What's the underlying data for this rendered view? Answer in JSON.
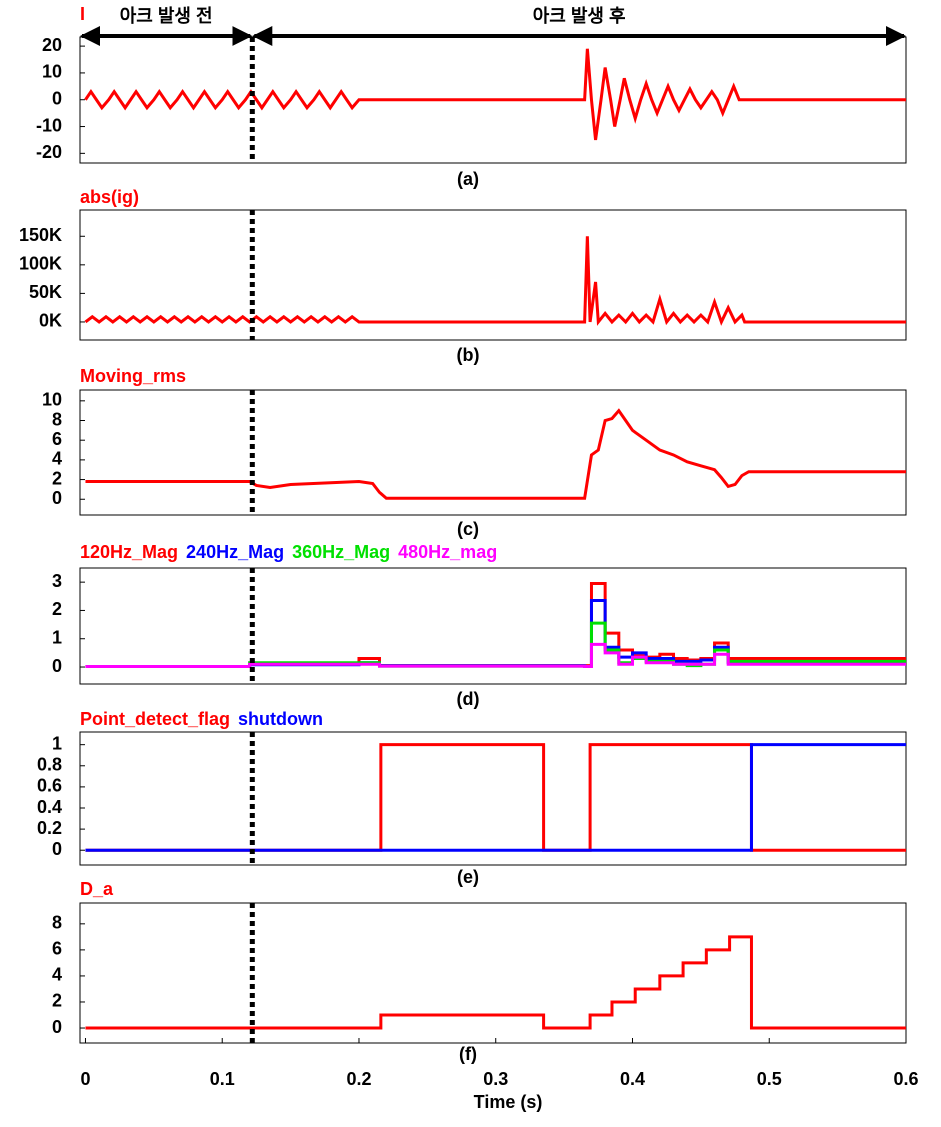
{
  "chart_data": [
    {
      "type": "line",
      "caption": "(a)",
      "xlim": [
        -0.004,
        0.6
      ],
      "ylim": [
        -23.6,
        23.4
      ],
      "yticks": [
        20,
        10,
        0,
        -10,
        -20
      ],
      "annotations": [
        {
          "text": "아크 발생 전",
          "x": [
            -0.004,
            0.122
          ]
        },
        {
          "text": "아크 발생 후",
          "x": [
            0.122,
            0.6
          ]
        }
      ],
      "series": [
        {
          "name": "I",
          "color": "#ff0000",
          "x": [
            0,
            0.004,
            0.008,
            0.012,
            0.017,
            0.021,
            0.025,
            0.029,
            0.033,
            0.037,
            0.041,
            0.045,
            0.05,
            0.054,
            0.058,
            0.062,
            0.067,
            0.071,
            0.075,
            0.079,
            0.083,
            0.087,
            0.091,
            0.095,
            0.1,
            0.104,
            0.108,
            0.112,
            0.117,
            0.121,
            0.125,
            0.129,
            0.133,
            0.137,
            0.141,
            0.145,
            0.15,
            0.154,
            0.158,
            0.162,
            0.167,
            0.171,
            0.175,
            0.179,
            0.183,
            0.187,
            0.191,
            0.195,
            0.2,
            0.365,
            0.367,
            0.37,
            0.373,
            0.377,
            0.38,
            0.384,
            0.387,
            0.391,
            0.394,
            0.398,
            0.402,
            0.406,
            0.41,
            0.414,
            0.418,
            0.422,
            0.426,
            0.43,
            0.434,
            0.438,
            0.442,
            0.446,
            0.45,
            0.454,
            0.458,
            0.462,
            0.466,
            0.47,
            0.474,
            0.478,
            0.6
          ],
          "values": [
            0,
            3,
            0,
            -3,
            0,
            3,
            0,
            -3,
            0,
            3,
            0,
            -3,
            0,
            3,
            0,
            -3,
            0,
            3,
            0,
            -3,
            0,
            3,
            0,
            -3,
            0,
            3,
            0,
            -3,
            0,
            3,
            0,
            -3,
            0,
            3,
            0,
            -3,
            0,
            3,
            0,
            -3,
            0,
            3,
            0,
            -3,
            0,
            3,
            0,
            -3,
            0,
            0,
            19,
            0,
            -15,
            0,
            12,
            0,
            -10,
            0,
            8,
            0,
            -7,
            0,
            6,
            0,
            -5,
            0,
            5,
            0,
            -4,
            0,
            4,
            0,
            -3,
            0,
            3,
            0,
            -5,
            0,
            5,
            0,
            0
          ]
        }
      ]
    },
    {
      "type": "line",
      "caption": "(b)",
      "xlim": [
        -0.004,
        0.6
      ],
      "ylim": [
        -31600,
        196000
      ],
      "yticks": [
        {
          "value": 150000,
          "label": "150K"
        },
        {
          "value": 100000,
          "label": "100K"
        },
        {
          "value": 50000,
          "label": "50K"
        },
        {
          "value": 0,
          "label": "0K"
        }
      ],
      "series": [
        {
          "name": "abs(ig)",
          "color": "#ff0000",
          "x": [
            0,
            0.005,
            0.01,
            0.015,
            0.02,
            0.025,
            0.03,
            0.035,
            0.04,
            0.045,
            0.05,
            0.055,
            0.06,
            0.065,
            0.07,
            0.075,
            0.08,
            0.085,
            0.09,
            0.095,
            0.1,
            0.105,
            0.11,
            0.115,
            0.12,
            0.125,
            0.13,
            0.135,
            0.14,
            0.145,
            0.15,
            0.155,
            0.16,
            0.165,
            0.17,
            0.175,
            0.18,
            0.185,
            0.19,
            0.195,
            0.2,
            0.365,
            0.367,
            0.369,
            0.373,
            0.375,
            0.38,
            0.385,
            0.39,
            0.395,
            0.4,
            0.405,
            0.41,
            0.415,
            0.42,
            0.425,
            0.43,
            0.435,
            0.44,
            0.445,
            0.45,
            0.455,
            0.46,
            0.465,
            0.47,
            0.475,
            0.48,
            0.482,
            0.6
          ],
          "values": [
            0,
            9000,
            0,
            9000,
            0,
            9000,
            0,
            9000,
            0,
            9000,
            0,
            9000,
            0,
            9000,
            0,
            9000,
            0,
            9000,
            0,
            9000,
            0,
            9000,
            0,
            9000,
            0,
            9000,
            0,
            9000,
            0,
            9000,
            0,
            9000,
            0,
            9000,
            0,
            9000,
            0,
            9000,
            0,
            9000,
            0,
            0,
            150000,
            0,
            70000,
            0,
            15000,
            0,
            12000,
            0,
            15000,
            0,
            12000,
            0,
            40000,
            0,
            15000,
            0,
            12000,
            0,
            12000,
            0,
            35000,
            0,
            25000,
            0,
            12000,
            0,
            0
          ]
        }
      ]
    },
    {
      "type": "line",
      "caption": "(c)",
      "xlim": [
        -0.004,
        0.6
      ],
      "ylim": [
        -1.6,
        11.1
      ],
      "yticks": [
        10,
        8,
        6,
        4,
        2,
        0
      ],
      "series": [
        {
          "name": "Moving_rms",
          "color": "#ff0000",
          "x": [
            0,
            0.12,
            0.125,
            0.135,
            0.15,
            0.2,
            0.21,
            0.215,
            0.22,
            0.365,
            0.37,
            0.375,
            0.38,
            0.385,
            0.39,
            0.395,
            0.4,
            0.41,
            0.42,
            0.43,
            0.44,
            0.45,
            0.46,
            0.465,
            0.47,
            0.475,
            0.48,
            0.485,
            0.6
          ],
          "values": [
            1.8,
            1.8,
            1.4,
            1.2,
            1.5,
            1.8,
            1.6,
            0.7,
            0.1,
            0.1,
            4.5,
            5,
            8,
            8.2,
            9,
            8,
            7,
            6,
            5,
            4.5,
            3.8,
            3.4,
            3,
            2.2,
            1.3,
            1.5,
            2.4,
            2.8,
            2.8
          ]
        }
      ]
    },
    {
      "type": "step",
      "caption": "(d)",
      "xlim": [
        -0.004,
        0.6
      ],
      "ylim": [
        -0.6,
        3.5
      ],
      "yticks": [
        3,
        2,
        1,
        0
      ],
      "series": [
        {
          "name": "120Hz_Mag",
          "color": "#ff0000",
          "x": [
            0,
            0.12,
            0.2,
            0.215,
            0.365,
            0.37,
            0.38,
            0.39,
            0.4,
            0.41,
            0.42,
            0.43,
            0.44,
            0.45,
            0.46,
            0.47,
            0.48,
            0.6
          ],
          "values": [
            0.02,
            0.1,
            0.3,
            0.05,
            0.05,
            2.95,
            1.2,
            0.6,
            0.4,
            0.35,
            0.45,
            0.3,
            0.25,
            0.3,
            0.85,
            0.3,
            0.3,
            0.3
          ]
        },
        {
          "name": "240Hz_Mag",
          "color": "#0000ff",
          "x": [
            0,
            0.12,
            0.2,
            0.215,
            0.365,
            0.37,
            0.38,
            0.39,
            0.4,
            0.41,
            0.42,
            0.43,
            0.44,
            0.45,
            0.46,
            0.47,
            0.48,
            0.6
          ],
          "values": [
            0.02,
            0.08,
            0.15,
            0.05,
            0.02,
            2.35,
            0.7,
            0.35,
            0.5,
            0.3,
            0.3,
            0.2,
            0.2,
            0.25,
            0.7,
            0.15,
            0.15,
            0.15
          ]
        },
        {
          "name": "360Hz_Mag",
          "color": "#00e000",
          "x": [
            0,
            0.12,
            0.2,
            0.215,
            0.365,
            0.37,
            0.38,
            0.39,
            0.4,
            0.41,
            0.42,
            0.43,
            0.44,
            0.45,
            0.46,
            0.47,
            0.48,
            0.6
          ],
          "values": [
            0.02,
            0.15,
            0.15,
            0.03,
            0.02,
            1.55,
            0.6,
            0.15,
            0.3,
            0.2,
            0.2,
            0.1,
            0.05,
            0.1,
            0.6,
            0.2,
            0.2,
            0.2
          ]
        },
        {
          "name": "480Hz_mag",
          "color": "#ff00ff",
          "x": [
            0,
            0.12,
            0.2,
            0.215,
            0.365,
            0.37,
            0.38,
            0.39,
            0.4,
            0.41,
            0.42,
            0.43,
            0.44,
            0.45,
            0.46,
            0.47,
            0.48,
            0.6
          ],
          "values": [
            0.02,
            0.1,
            0.1,
            0.03,
            0.02,
            0.8,
            0.5,
            0.1,
            0.35,
            0.15,
            0.15,
            0.1,
            0.1,
            0.1,
            0.45,
            0.1,
            0.1,
            0.1
          ]
        }
      ]
    },
    {
      "type": "step",
      "caption": "(e)",
      "xlim": [
        -0.004,
        0.6
      ],
      "ylim": [
        -0.14,
        1.12
      ],
      "yticks": [
        1,
        0.8,
        0.6,
        0.4,
        0.2,
        0
      ],
      "series": [
        {
          "name": "Point_detect_flag",
          "color": "#ff0000",
          "x": [
            0,
            0.216,
            0.335,
            0.369,
            0.487,
            0.6
          ],
          "values": [
            0,
            1,
            0,
            1,
            0,
            0
          ]
        },
        {
          "name": "shutdown",
          "color": "#0000ff",
          "x": [
            0,
            0.487,
            0.6
          ],
          "values": [
            0,
            1,
            1
          ]
        }
      ]
    },
    {
      "type": "step",
      "caption": "(f)",
      "xlim": [
        -0.004,
        0.6
      ],
      "ylim": [
        -1.15,
        9.6
      ],
      "yticks": [
        8,
        6,
        4,
        2,
        0
      ],
      "xticks": [
        0,
        0.1,
        0.2,
        0.3,
        0.4,
        0.5,
        0.6
      ],
      "xlabel": "Time (s)",
      "series": [
        {
          "name": "D_a",
          "color": "#ff0000",
          "x": [
            0,
            0.216,
            0.335,
            0.369,
            0.385,
            0.402,
            0.42,
            0.437,
            0.454,
            0.471,
            0.487,
            0.6
          ],
          "values": [
            0,
            1,
            0,
            1,
            2,
            3,
            4,
            5,
            6,
            7,
            0,
            0
          ]
        }
      ]
    }
  ]
}
